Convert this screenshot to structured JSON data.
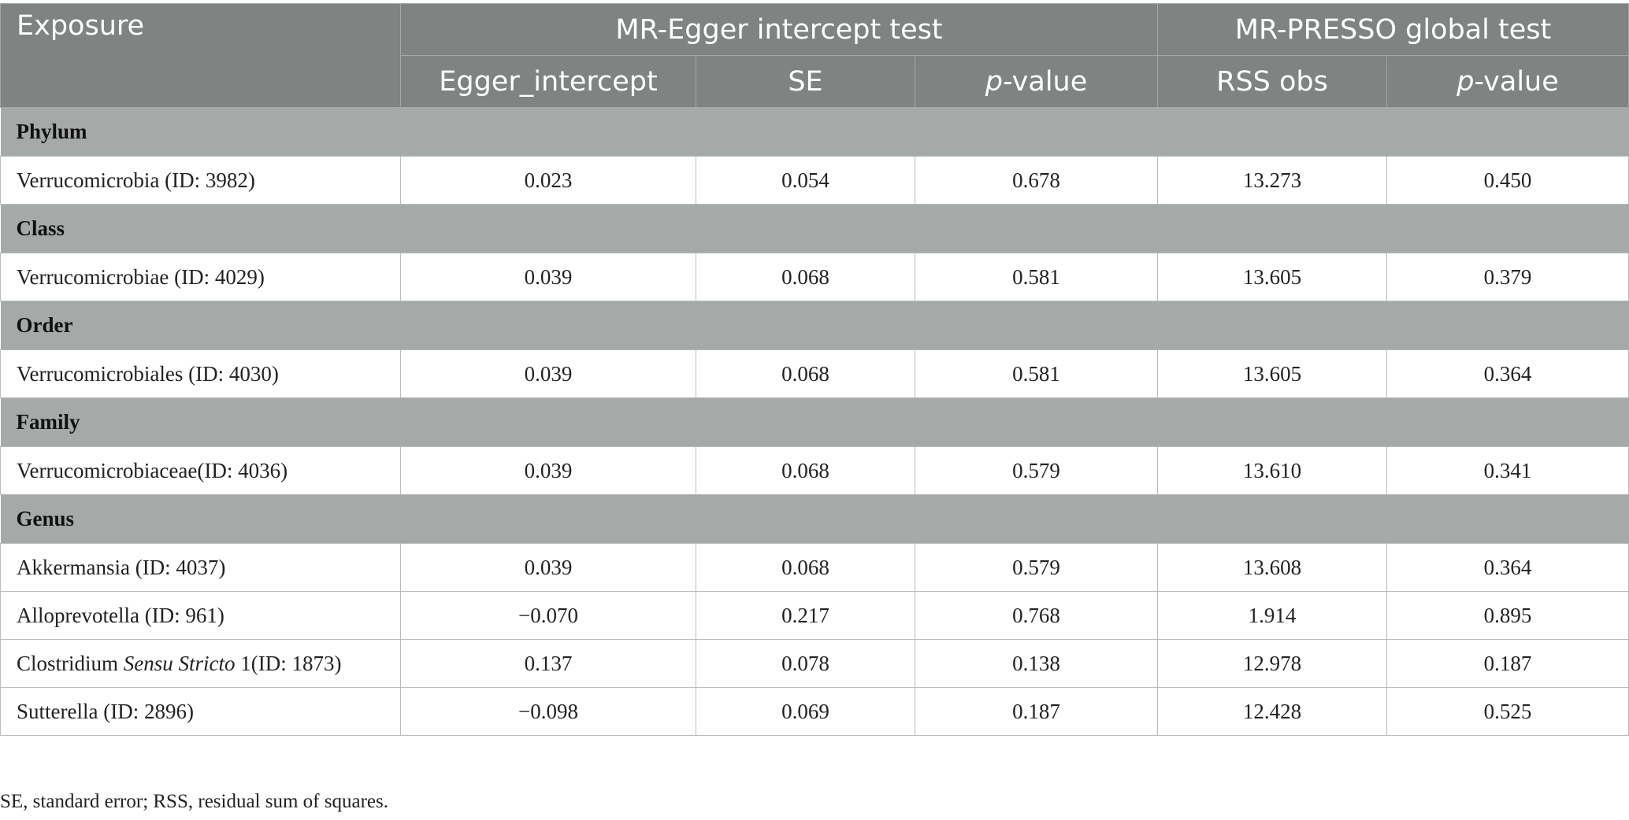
{
  "table": {
    "headers": {
      "exposure": "Exposure",
      "group_egger": "MR-Egger intercept test",
      "group_presso": "MR-PRESSO global test",
      "egger_intercept": "Egger_intercept",
      "se": "SE",
      "p_prefix": "p",
      "p_suffix": "-value",
      "rss_obs": "RSS obs"
    },
    "sections": [
      {
        "name": "Phylum",
        "rows": [
          {
            "pre": "Verrucomicrobia (ID: 3982)",
            "ital": "",
            "post": "",
            "egger": "0.023",
            "se": "0.054",
            "p": "0.678",
            "rss": "13.273",
            "p2": "0.450"
          }
        ]
      },
      {
        "name": "Class",
        "rows": [
          {
            "pre": "Verrucomicrobiae (ID: 4029)",
            "ital": "",
            "post": "",
            "egger": "0.039",
            "se": "0.068",
            "p": "0.581",
            "rss": "13.605",
            "p2": "0.379"
          }
        ]
      },
      {
        "name": "Order",
        "rows": [
          {
            "pre": "Verrucomicrobiales (ID: 4030)",
            "ital": "",
            "post": "",
            "egger": "0.039",
            "se": "0.068",
            "p": "0.581",
            "rss": "13.605",
            "p2": "0.364"
          }
        ]
      },
      {
        "name": "Family",
        "rows": [
          {
            "pre": "Verrucomicrobiaceae(ID: 4036)",
            "ital": "",
            "post": "",
            "egger": "0.039",
            "se": "0.068",
            "p": "0.579",
            "rss": "13.610",
            "p2": "0.341"
          }
        ]
      },
      {
        "name": "Genus",
        "rows": [
          {
            "pre": "Akkermansia (ID: 4037)",
            "ital": "",
            "post": "",
            "egger": "0.039",
            "se": "0.068",
            "p": "0.579",
            "rss": "13.608",
            "p2": "0.364"
          },
          {
            "pre": "Alloprevotella (ID: 961)",
            "ital": "",
            "post": "",
            "egger": "−0.070",
            "se": "0.217",
            "p": "0.768",
            "rss": "1.914",
            "p2": "0.895"
          },
          {
            "pre": "Clostridium ",
            "ital": "Sensu Stricto",
            "post": " 1(ID: 1873)",
            "egger": "0.137",
            "se": "0.078",
            "p": "0.138",
            "rss": "12.978",
            "p2": "0.187"
          },
          {
            "pre": "Sutterella (ID: 2896)",
            "ital": "",
            "post": "",
            "egger": "−0.098",
            "se": "0.069",
            "p": "0.187",
            "rss": "12.428",
            "p2": "0.525"
          }
        ]
      }
    ]
  },
  "footnote": "SE, standard error; RSS, residual sum of squares."
}
